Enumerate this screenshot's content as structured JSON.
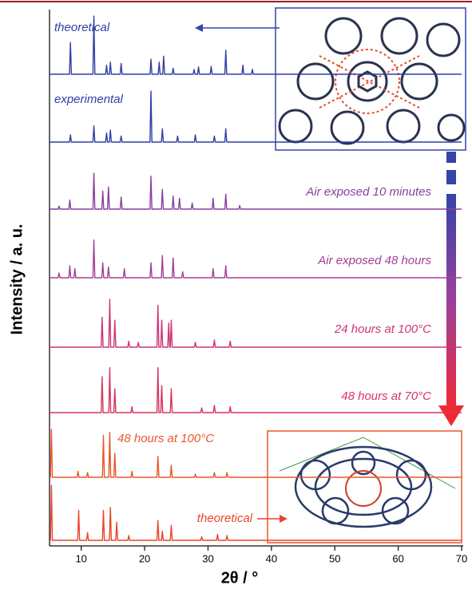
{
  "chart_data": {
    "type": "line",
    "x_label": "2θ / °",
    "y_label": "Intensity / a. u.",
    "xlim": [
      5,
      70
    ],
    "xticks": [
      10,
      20,
      30,
      40,
      50,
      60,
      70
    ],
    "series": [
      {
        "name": "theoretical",
        "color": "#2e3fa6",
        "x": [
          5,
          8.15,
          8.3,
          8.45,
          11.85,
          12,
          12.15,
          13.85,
          14,
          14.15,
          14.45,
          14.6,
          14.75,
          16.15,
          16.3,
          16.45,
          20.85,
          21,
          21.15,
          22.15,
          22.3,
          22.45,
          22.85,
          23,
          23.15,
          24.35,
          24.5,
          24.65,
          27.65,
          27.8,
          27.95,
          28.35,
          28.5,
          28.65,
          30.35,
          30.5,
          30.65,
          32.65,
          32.8,
          32.95,
          35.35,
          35.5,
          35.65,
          36.85,
          37,
          37.15,
          70
        ],
        "values": [
          0,
          0,
          53,
          0,
          0,
          97,
          0,
          0,
          15,
          0,
          0,
          20,
          0,
          0,
          18,
          0,
          0,
          25,
          0,
          0,
          20,
          0,
          0,
          30,
          0,
          0,
          10,
          0,
          0,
          8,
          0,
          0,
          12,
          0,
          0,
          13,
          0,
          0,
          40,
          0,
          0,
          15,
          0,
          0,
          8,
          0,
          0
        ]
      },
      {
        "name": "experimental",
        "color": "#2e3fa6",
        "x": [
          5,
          8.15,
          8.3,
          8.45,
          11.85,
          12,
          12.15,
          13.85,
          14,
          14.15,
          14.45,
          14.6,
          14.75,
          16.15,
          16.3,
          16.45,
          20.85,
          21,
          21.15,
          22.65,
          22.8,
          22.95,
          25.05,
          25.2,
          25.35,
          27.85,
          28,
          28.15,
          30.85,
          31,
          31.15,
          32.65,
          32.8,
          32.95,
          70
        ],
        "values": [
          0,
          0,
          12,
          0,
          0,
          27,
          0,
          0,
          15,
          0,
          0,
          20,
          0,
          0,
          10,
          0,
          0,
          85,
          0,
          0,
          22,
          0,
          0,
          10,
          0,
          0,
          12,
          0,
          0,
          10,
          0,
          0,
          22,
          0,
          0
        ]
      },
      {
        "name": "Air exposed 10 minutes",
        "color": "#8a3f9e",
        "x": [
          5,
          6.35,
          6.5,
          6.65,
          8.05,
          8.2,
          8.35,
          11.85,
          12,
          12.15,
          13.25,
          13.4,
          13.55,
          14.15,
          14.3,
          14.45,
          16.15,
          16.3,
          16.45,
          20.85,
          21,
          21.15,
          22.65,
          22.8,
          22.95,
          24.35,
          24.5,
          24.65,
          25.35,
          25.5,
          25.65,
          27.35,
          27.5,
          27.65,
          30.65,
          30.8,
          30.95,
          32.65,
          32.8,
          32.95,
          34.85,
          35,
          35.15,
          70
        ],
        "values": [
          0,
          0,
          5,
          0,
          0,
          15,
          0,
          0,
          60,
          0,
          0,
          30,
          0,
          0,
          37,
          0,
          0,
          20,
          0,
          0,
          55,
          0,
          0,
          33,
          0,
          0,
          22,
          0,
          0,
          18,
          0,
          0,
          10,
          0,
          0,
          18,
          0,
          0,
          25,
          0,
          0,
          6,
          0,
          0
        ]
      },
      {
        "name": "Air exposed 48 hours",
        "color": "#a23f98",
        "x": [
          5,
          6.35,
          6.5,
          6.65,
          8.05,
          8.2,
          8.35,
          8.85,
          9,
          9.15,
          11.85,
          12,
          12.15,
          13.25,
          13.4,
          13.55,
          14.15,
          14.3,
          14.45,
          16.65,
          16.8,
          16.95,
          20.85,
          21,
          21.15,
          22.65,
          22.8,
          22.95,
          24.35,
          24.5,
          24.65,
          25.85,
          26,
          26.15,
          30.65,
          30.8,
          30.95,
          32.65,
          32.8,
          32.95,
          70
        ],
        "values": [
          0,
          0,
          8,
          0,
          0,
          20,
          0,
          0,
          15,
          0,
          0,
          63,
          0,
          0,
          25,
          0,
          0,
          18,
          0,
          0,
          15,
          0,
          0,
          25,
          0,
          0,
          37,
          0,
          0,
          33,
          0,
          0,
          10,
          0,
          0,
          15,
          0,
          0,
          20,
          0,
          0
        ]
      },
      {
        "name": "24 hours at 100°C",
        "color": "#cf3478",
        "x": [
          5,
          13.15,
          13.3,
          13.45,
          14.35,
          14.5,
          14.65,
          15.15,
          15.3,
          15.45,
          17.35,
          17.5,
          17.65,
          18.85,
          19,
          19.15,
          21.95,
          22.1,
          22.25,
          22.55,
          22.7,
          22.85,
          23.65,
          23.8,
          23.95,
          24.05,
          24.2,
          24.35,
          27.85,
          28,
          28.15,
          30.85,
          31,
          31.15,
          33.35,
          33.5,
          33.65,
          70
        ],
        "values": [
          0,
          0,
          50,
          0,
          0,
          80,
          0,
          0,
          45,
          0,
          0,
          10,
          0,
          0,
          8,
          0,
          0,
          70,
          0,
          0,
          45,
          0,
          0,
          40,
          0,
          0,
          45,
          0,
          0,
          8,
          0,
          0,
          12,
          0,
          0,
          10,
          0,
          0
        ]
      },
      {
        "name": "48 hours at 70°C",
        "color": "#d9345e",
        "x": [
          5,
          13.15,
          13.3,
          13.45,
          14.35,
          14.5,
          14.65,
          15.15,
          15.3,
          15.45,
          17.85,
          18,
          18.15,
          21.95,
          22.1,
          22.25,
          22.55,
          22.7,
          22.85,
          24.05,
          24.2,
          24.35,
          28.85,
          29,
          29.15,
          30.85,
          31,
          31.15,
          33.35,
          33.5,
          33.65,
          70
        ],
        "values": [
          0,
          0,
          60,
          0,
          0,
          75,
          0,
          0,
          40,
          0,
          0,
          10,
          0,
          0,
          75,
          0,
          0,
          45,
          0,
          0,
          40,
          0,
          0,
          8,
          0,
          0,
          12,
          0,
          0,
          10,
          0,
          0
        ]
      },
      {
        "name": "48 hours at 100°C",
        "color": "#e8572a",
        "x": [
          5,
          5.15,
          5.3,
          5.45,
          9.35,
          9.5,
          9.65,
          10.85,
          11,
          11.15,
          13.35,
          13.5,
          13.65,
          14.35,
          14.5,
          14.65,
          15.15,
          15.3,
          15.45,
          17.85,
          18,
          18.15,
          21.95,
          22.1,
          22.25,
          24.05,
          24.2,
          24.35,
          27.85,
          28,
          28.15,
          30.85,
          31,
          31.15,
          32.85,
          33,
          33.15,
          70
        ],
        "values": [
          0,
          0,
          80,
          0,
          0,
          10,
          0,
          0,
          8,
          0,
          0,
          70,
          0,
          0,
          75,
          0,
          0,
          40,
          0,
          0,
          10,
          0,
          0,
          35,
          0,
          0,
          20,
          0,
          0,
          5,
          0,
          0,
          8,
          0,
          0,
          8,
          0,
          0
        ]
      },
      {
        "name": "theoretical",
        "color": "#e8452a",
        "x": [
          5,
          5.15,
          5.3,
          5.45,
          9.45,
          9.6,
          9.75,
          10.85,
          11,
          11.15,
          13.35,
          13.5,
          13.65,
          14.45,
          14.6,
          14.75,
          15.45,
          15.6,
          15.75,
          17.35,
          17.5,
          17.65,
          21.95,
          22.1,
          22.25,
          22.65,
          22.8,
          22.95,
          24.05,
          24.2,
          24.35,
          28.85,
          29,
          29.15,
          31.35,
          31.5,
          31.65,
          32.85,
          33,
          33.15,
          70
        ],
        "values": [
          0,
          0,
          92,
          0,
          0,
          50,
          0,
          0,
          13,
          0,
          0,
          50,
          0,
          0,
          55,
          0,
          0,
          30,
          0,
          0,
          8,
          0,
          0,
          33,
          0,
          0,
          15,
          0,
          0,
          25,
          0,
          0,
          6,
          0,
          0,
          10,
          0,
          0,
          8,
          0,
          0
        ]
      }
    ]
  }
}
